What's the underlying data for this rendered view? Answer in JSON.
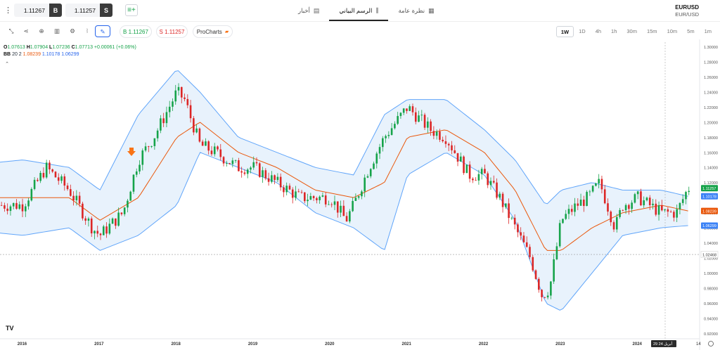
{
  "header": {
    "menu_icon": "kebab-icon",
    "buy_price": "1.11267",
    "buy_tag": "B",
    "sell_price": "1.11257",
    "sell_tag": "S",
    "add_icon": "add-list-icon",
    "tabs": [
      {
        "label": "أخبار",
        "icon": "news-icon",
        "active": false
      },
      {
        "label": "الرسم البياني",
        "icon": "candles-icon",
        "active": true
      },
      {
        "label": "نظرة عامة",
        "icon": "grid-icon",
        "active": false
      }
    ],
    "symbol": "EURUSD",
    "symbol_sub": "EUR/USD"
  },
  "toolbar": {
    "tools": [
      "collapse-icon",
      "share-icon",
      "add-indicator-icon",
      "bar-chart-icon",
      "settings-icon",
      "indicators-icon",
      "draw-icon"
    ],
    "buy_pill": "B 1.11267",
    "sell_pill": "S 1.11257",
    "prochart_label": "ProCharts",
    "timeframes": [
      "1W",
      "1D",
      "4h",
      "1h",
      "30m",
      "15m",
      "10m",
      "5m",
      "1m"
    ],
    "active_timeframe": "1W"
  },
  "legend": {
    "o_label": "O",
    "o_val": "1.07613",
    "h_label": "H",
    "h_val": "1.07904",
    "l_label": "L",
    "l_val": "1.07236",
    "c_label": "C",
    "c_val": "1.07713",
    "change": "+0.00061 (+0.06%)",
    "bb_label": "BB",
    "bb_params": "20 2",
    "bb_mid": "1.08239",
    "bb_upper": "1.10178",
    "bb_lower": "1.06299"
  },
  "chart_data": {
    "type": "line",
    "symbol": "EURUSD",
    "timeframe": "1W",
    "x_labels": [
      "2016",
      "2017",
      "2018",
      "2019",
      "2020",
      "2021",
      "2022",
      "2023",
      "2024"
    ],
    "y_ticks": [
      "1.30000",
      "1.28000",
      "1.26000",
      "1.24000",
      "1.22000",
      "1.20000",
      "1.18000",
      "1.16000",
      "1.14000",
      "1.12000",
      "1.10000",
      "1.08000",
      "1.06000",
      "1.04000",
      "1.02000",
      "1.00000",
      "0.98000",
      "0.96000",
      "0.94000",
      "0.92000"
    ],
    "ylim": [
      0.913,
      1.306
    ],
    "series": [
      {
        "name": "price",
        "color": "#16a34a",
        "x": [
          2015.0,
          2015.5,
          2016.0,
          2016.3,
          2016.6,
          2016.9,
          2017.0,
          2017.3,
          2017.5,
          2017.7,
          2018.0,
          2018.1,
          2018.3,
          2018.5,
          2018.8,
          2019.0,
          2019.3,
          2019.6,
          2019.8,
          2020.0,
          2020.2,
          2020.3,
          2020.5,
          2020.7,
          2021.0,
          2021.3,
          2021.5,
          2021.8,
          2022.0,
          2022.2,
          2022.4,
          2022.6,
          2022.75,
          2022.85,
          2023.0,
          2023.2,
          2023.35,
          2023.5,
          2023.7,
          2023.8,
          2024.0,
          2024.3,
          2024.5,
          2024.65
        ],
        "y": [
          1.12,
          1.09,
          1.09,
          1.14,
          1.11,
          1.06,
          1.05,
          1.08,
          1.15,
          1.18,
          1.24,
          1.23,
          1.17,
          1.16,
          1.14,
          1.14,
          1.12,
          1.1,
          1.1,
          1.1,
          1.07,
          1.09,
          1.14,
          1.18,
          1.22,
          1.19,
          1.18,
          1.13,
          1.13,
          1.1,
          1.06,
          1.02,
          0.97,
          0.98,
          1.07,
          1.09,
          1.1,
          1.12,
          1.06,
          1.09,
          1.1,
          1.08,
          1.08,
          1.11257
        ]
      },
      {
        "name": "BB",
        "color": "#ea580c",
        "x": [
          2015.0,
          2016.0,
          2016.6,
          2017.0,
          2017.5,
          2018.0,
          2018.3,
          2018.8,
          2019.3,
          2019.8,
          2020.3,
          2020.7,
          2021.0,
          2021.5,
          2022.0,
          2022.4,
          2022.8,
          2023.0,
          2023.4,
          2023.8,
          2024.3,
          2024.65
        ],
        "y": [
          1.1,
          1.1,
          1.1,
          1.07,
          1.1,
          1.18,
          1.2,
          1.16,
          1.14,
          1.11,
          1.1,
          1.12,
          1.18,
          1.19,
          1.16,
          1.11,
          1.03,
          1.03,
          1.06,
          1.08,
          1.09,
          1.08239
        ]
      },
      {
        "name": "upper",
        "color": "#60a5fa",
        "x": [
          2015.0,
          2016.0,
          2016.6,
          2017.0,
          2017.5,
          2018.0,
          2018.3,
          2018.8,
          2019.3,
          2019.8,
          2020.3,
          2020.7,
          2021.0,
          2021.5,
          2022.0,
          2022.4,
          2022.8,
          2023.0,
          2023.4,
          2023.8,
          2024.3,
          2024.65
        ],
        "y": [
          1.14,
          1.15,
          1.14,
          1.11,
          1.21,
          1.27,
          1.24,
          1.18,
          1.16,
          1.14,
          1.13,
          1.21,
          1.23,
          1.23,
          1.19,
          1.15,
          1.09,
          1.11,
          1.12,
          1.11,
          1.11,
          1.10178
        ]
      },
      {
        "name": "lower",
        "color": "#60a5fa",
        "x": [
          2015.0,
          2016.0,
          2016.6,
          2017.0,
          2017.5,
          2018.0,
          2018.3,
          2018.8,
          2019.3,
          2019.8,
          2020.3,
          2020.7,
          2021.0,
          2021.5,
          2022.0,
          2022.4,
          2022.8,
          2023.0,
          2023.4,
          2023.8,
          2024.3,
          2024.65
        ],
        "y": [
          1.06,
          1.05,
          1.06,
          1.03,
          1.05,
          1.09,
          1.16,
          1.14,
          1.12,
          1.08,
          1.06,
          1.03,
          1.13,
          1.16,
          1.13,
          1.07,
          0.96,
          0.95,
          1.0,
          1.05,
          1.06,
          1.06299
        ]
      }
    ],
    "current_price": "1.11257",
    "current_buy": "1.11267",
    "bb_mid_label": "1.08239",
    "bb_upper_label": "1.10178",
    "bb_lower_label": "1.06299",
    "crosshair_price": "1.02468",
    "crosshair_date": "29 أبريل 24",
    "bottom_right_label": "14",
    "grid": false,
    "band_fill_color": "#e8f2fc",
    "up_color": "#16a34a",
    "down_color": "#dc2626"
  }
}
